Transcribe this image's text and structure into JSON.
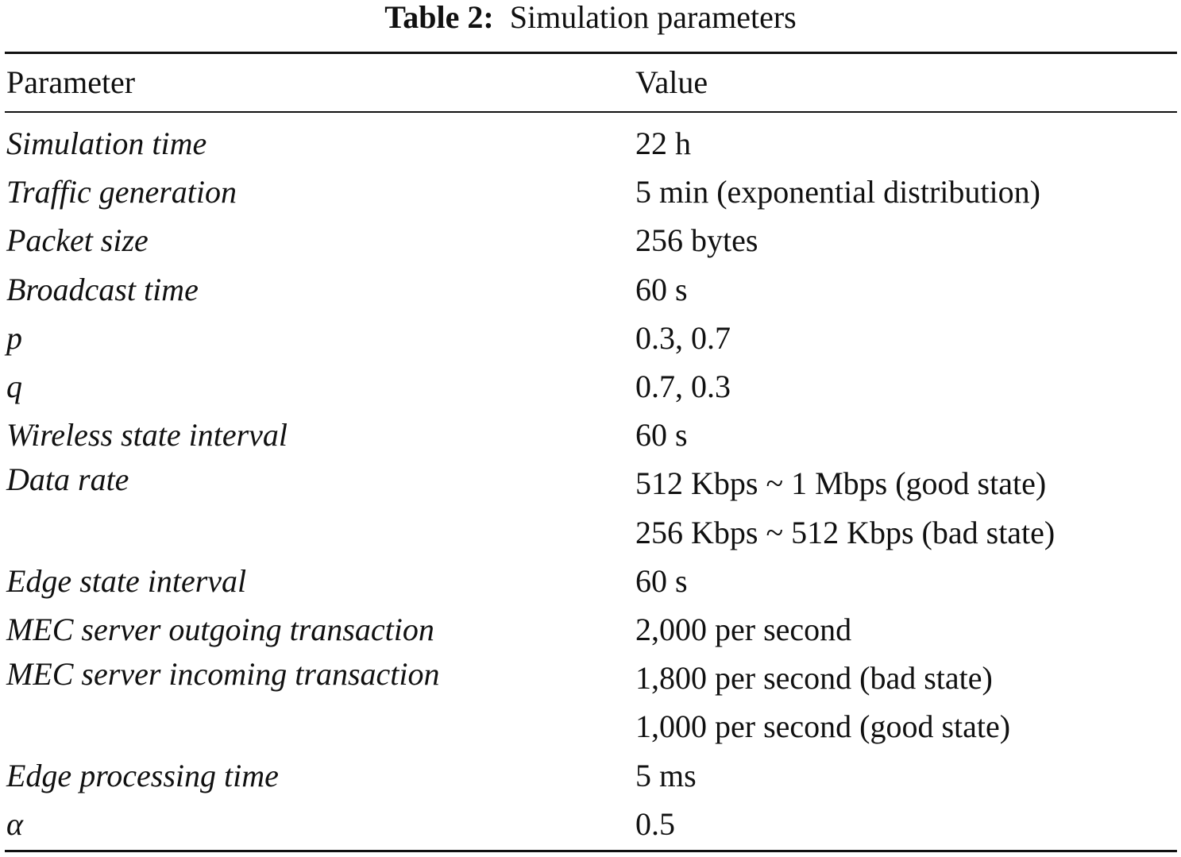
{
  "caption": {
    "label": "Table 2:",
    "title": "Simulation parameters"
  },
  "table": {
    "header": [
      "Parameter",
      "Value"
    ],
    "rows": [
      {
        "parameter": "Simulation time",
        "value": [
          "22 h"
        ]
      },
      {
        "parameter": "Traffic generation",
        "value": [
          "5 min (exponential distribution)"
        ]
      },
      {
        "parameter": "Packet size",
        "value": [
          "256 bytes"
        ]
      },
      {
        "parameter": "Broadcast time",
        "value": [
          "60 s"
        ]
      },
      {
        "parameter": "p",
        "value": [
          "0.3, 0.7"
        ]
      },
      {
        "parameter": "q",
        "value": [
          "0.7, 0.3"
        ]
      },
      {
        "parameter": "Wireless state interval",
        "value": [
          "60 s"
        ]
      },
      {
        "parameter": "Data rate",
        "value": [
          "512 Kbps ~ 1 Mbps (good state)",
          "256 Kbps ~ 512 Kbps (bad state)"
        ]
      },
      {
        "parameter": "Edge state interval",
        "value": [
          "60 s"
        ]
      },
      {
        "parameter": "MEC server outgoing transaction",
        "value": [
          "2,000 per second"
        ]
      },
      {
        "parameter": "MEC server incoming transaction",
        "value": [
          "1,800 per second (bad state)",
          "1,000 per second (good state)"
        ]
      },
      {
        "parameter": "Edge processing time",
        "value": [
          "5 ms"
        ]
      },
      {
        "parameter": "α",
        "value": [
          "0.5"
        ]
      }
    ]
  }
}
